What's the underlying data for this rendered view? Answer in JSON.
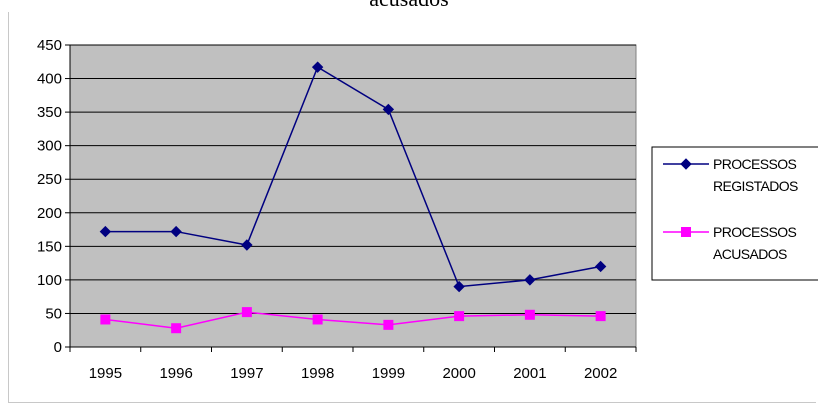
{
  "chart_data": {
    "type": "line",
    "title": "acusados",
    "categories": [
      "1995",
      "1996",
      "1997",
      "1998",
      "1999",
      "2000",
      "2001",
      "2002"
    ],
    "series": [
      {
        "name": "PROCESSOS REGISTADOS",
        "name_lines": [
          "PROCESSOS",
          "REGISTADOS"
        ],
        "color": "#000080",
        "marker": "diamond",
        "values": [
          172,
          172,
          152,
          417,
          354,
          90,
          100,
          120
        ]
      },
      {
        "name": "PROCESSOS ACUSADOS",
        "name_lines": [
          "PROCESSOS",
          "ACUSADOS"
        ],
        "color": "#ff00ff",
        "marker": "square",
        "values": [
          41,
          28,
          52,
          41,
          33,
          46,
          48,
          46
        ]
      }
    ],
    "ylim": [
      0,
      450
    ],
    "yticks": [
      0,
      50,
      100,
      150,
      200,
      250,
      300,
      350,
      400,
      450
    ],
    "grid": true,
    "plot_background": "#c0c0c0",
    "legend": "right"
  }
}
